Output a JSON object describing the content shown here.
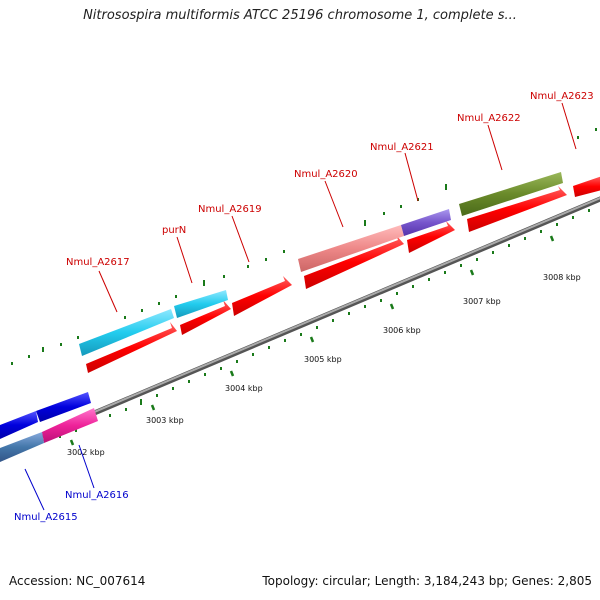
{
  "title": "Nitrosospira multiformis ATCC 25196 chromosome 1, complete s...",
  "footer": {
    "accession": "Accession: NC_007614",
    "summary": "Topology: circular; Length: 3,184,243 bp; Genes: 2,805"
  },
  "colors": {
    "forward_label": "#cc0000",
    "reverse_label": "#0000cc",
    "backbone": "#888888",
    "tick": "#1a7a1a"
  },
  "scale_ticks": [
    "3002 kbp",
    "3003 kbp",
    "3004 kbp",
    "3005 kbp",
    "3006 kbp",
    "3007 kbp",
    "3008 kbp"
  ],
  "gene_labels": [
    {
      "text": "Nmul_A2617",
      "strand": "forward"
    },
    {
      "text": "purN",
      "strand": "forward"
    },
    {
      "text": "Nmul_A2619",
      "strand": "forward"
    },
    {
      "text": "Nmul_A2620",
      "strand": "forward"
    },
    {
      "text": "Nmul_A2621",
      "strand": "forward"
    },
    {
      "text": "Nmul_A2622",
      "strand": "forward"
    },
    {
      "text": "Nmul_A2623",
      "strand": "forward"
    },
    {
      "text": "Nmul_A2615",
      "strand": "reverse"
    },
    {
      "text": "Nmul_A2616",
      "strand": "reverse"
    }
  ],
  "features": [
    {
      "name": "cds-forward",
      "color": "#ff0000"
    },
    {
      "name": "gene-nmul-a2617",
      "color": "#22ccee"
    },
    {
      "name": "gene-purn",
      "color": "#22ccee"
    },
    {
      "name": "gene-nmul-a2620",
      "color": "#ee8888"
    },
    {
      "name": "gene-nmul-a2621",
      "color": "#7755cc"
    },
    {
      "name": "gene-nmul-a2622",
      "color": "#6a8a2a"
    },
    {
      "name": "gene-nmul-a2615",
      "color": "#0000dd"
    },
    {
      "name": "gene-nmul-a2616",
      "color": "#ee2299"
    },
    {
      "name": "gene-steelblue",
      "color": "#4477aa"
    }
  ]
}
